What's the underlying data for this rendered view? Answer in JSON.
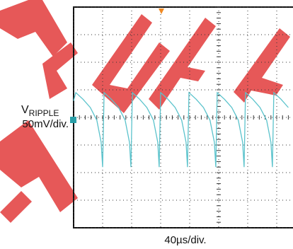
{
  "chart_data": {
    "type": "line",
    "y_label_symbol": "V",
    "y_label_subscript": "RIPPLE",
    "y_scale": "50mV/div.",
    "x_scale": "40µs/div.",
    "x": [
      0,
      3,
      13,
      23,
      32,
      38,
      40,
      42,
      52,
      62,
      71,
      77,
      79,
      81,
      91,
      101,
      110,
      116,
      118,
      120,
      130,
      140,
      149,
      155,
      157,
      159,
      169,
      179,
      188,
      194,
      196,
      198,
      208,
      218,
      227,
      233,
      235,
      237,
      247,
      257,
      266,
      272,
      274,
      276,
      286,
      296
    ],
    "series": [
      {
        "color": "#5bc3cc",
        "values": [
          30,
          45,
          33,
          18,
          -5,
          -45,
          -90,
          45,
          33,
          18,
          -5,
          -45,
          -90,
          45,
          33,
          18,
          -5,
          -45,
          -90,
          45,
          33,
          18,
          -5,
          -45,
          -90,
          45,
          33,
          18,
          -5,
          -45,
          -90,
          45,
          33,
          18,
          -5,
          -45,
          -90,
          45,
          33,
          18,
          -5,
          -45,
          -90,
          45,
          33,
          18
        ]
      }
    ],
    "xlim": [
      0,
      400
    ],
    "ylim": [
      -200,
      200
    ],
    "xticks": [
      0,
      40,
      80,
      120,
      160,
      200,
      240,
      280,
      320,
      360,
      400
    ],
    "yticks": [
      -200,
      -150,
      -100,
      -50,
      0,
      50,
      100,
      150,
      200
    ],
    "grid": true
  }
}
